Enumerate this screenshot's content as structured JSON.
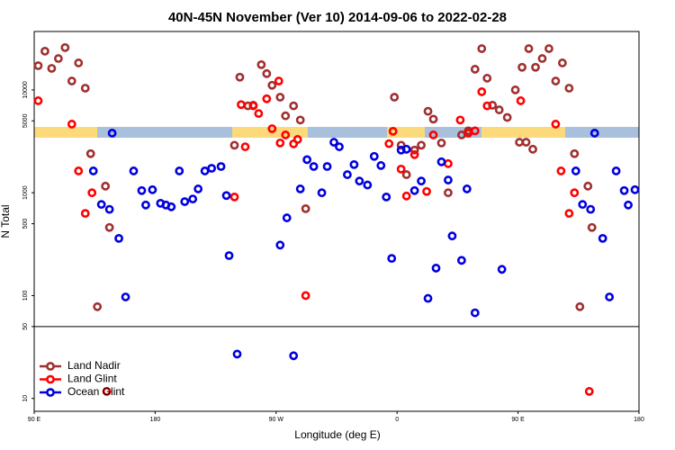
{
  "chart_data": {
    "type": "scatter",
    "title": "40N-45N November (Ver 10)   2014-09-06 to 2022-02-28",
    "xlabel": "Longitude (deg E)",
    "ylabel": "N Total",
    "xlim": [
      90,
      540
    ],
    "ylim": [
      7.5,
      37000
    ],
    "ylog": true,
    "hline": 50,
    "legend": "lower left",
    "xticks": [
      {
        "value": 90,
        "label": "90 E"
      },
      180,
      {
        "value": 270,
        "label": "90 W"
      },
      {
        "value": 360,
        "label": "0"
      },
      {
        "value": 450,
        "label": "90 E"
      },
      180
    ],
    "yticks": [
      10,
      50,
      100,
      500,
      1000,
      5000,
      10000
    ],
    "series": [
      {
        "name": "Land Nadir",
        "color": "#a0302f",
        "x": [
          93,
          98,
          103,
          108,
          113,
          118,
          123,
          128,
          132,
          143,
          137,
          146,
          239,
          243,
          249,
          253,
          259,
          263,
          267,
          273,
          277,
          283,
          288,
          292,
          358,
          363,
          367,
          373,
          378,
          383,
          387,
          393,
          398,
          408,
          413,
          418,
          423,
          427,
          431,
          436,
          442,
          451,
          456,
          461,
          448,
          453,
          458,
          463,
          468,
          473,
          478,
          483,
          488,
          492,
          502,
          496,
          505
        ],
        "values": [
          17200,
          23800,
          16200,
          20200,
          25800,
          12200,
          18300,
          10400,
          2400,
          1160,
          78,
          460,
          2900,
          13300,
          7000,
          7100,
          17600,
          14400,
          11100,
          8500,
          5600,
          7000,
          5100,
          700,
          8500,
          2900,
          1500,
          2600,
          2900,
          6200,
          5200,
          3050,
          1000,
          3650,
          4000,
          15900,
          25200,
          13000,
          7100,
          6400,
          5400,
          3100,
          3100,
          2650,
          10000,
          16600,
          25200,
          16600,
          20200,
          25200,
          12200,
          18300,
          10400,
          2400,
          1160,
          78,
          460
        ]
      },
      {
        "name": "Land Glint",
        "color": "#ff0000",
        "x": [
          93,
          118,
          123,
          128,
          133,
          239,
          247,
          244,
          253,
          257,
          263,
          267,
          272,
          273,
          277,
          283,
          286,
          292,
          357,
          354,
          363,
          367,
          373,
          382,
          387,
          398,
          407,
          413,
          418,
          423,
          427,
          452,
          478,
          482,
          488,
          492,
          503,
          144
        ],
        "values": [
          7850,
          4650,
          1630,
          630,
          1000,
          910,
          2800,
          7200,
          7000,
          5900,
          8200,
          4200,
          12200,
          3050,
          3650,
          2990,
          3300,
          100,
          3960,
          3000,
          1700,
          930,
          2350,
          1030,
          3650,
          1920,
          5100,
          3800,
          4000,
          9600,
          7000,
          7850,
          4650,
          1630,
          630,
          1000,
          11.7,
          11.7
        ]
      },
      {
        "name": "Ocean Glint",
        "color": "#0000e0",
        "x": [
          148,
          134,
          140,
          146,
          153,
          158,
          164,
          170,
          173,
          178,
          184,
          188,
          192,
          198,
          202,
          208,
          212,
          217,
          222,
          229,
          233,
          235,
          241,
          273,
          278,
          283,
          288,
          293,
          298,
          304,
          308,
          313,
          317,
          323,
          328,
          332,
          338,
          343,
          348,
          352,
          356,
          363,
          367,
          373,
          378,
          383,
          389,
          393,
          398,
          401,
          408,
          412,
          418,
          438,
          493,
          498,
          504,
          507,
          513,
          518,
          523,
          529,
          532,
          537
        ],
        "values": [
          3800,
          1630,
          770,
          690,
          360,
          97,
          1630,
          1050,
          760,
          1070,
          790,
          760,
          730,
          1630,
          820,
          870,
          1090,
          1630,
          1730,
          1800,
          940,
          245,
          27,
          310,
          570,
          26,
          1090,
          2100,
          1800,
          1000,
          1800,
          3100,
          2800,
          1500,
          1880,
          1300,
          1190,
          2260,
          1840,
          910,
          230,
          2600,
          2650,
          1050,
          1300,
          94,
          185,
          2000,
          1330,
          380,
          220,
          1090,
          68,
          180,
          1630,
          770,
          690,
          3800,
          360,
          97,
          1630,
          1050,
          760,
          1070
        ]
      }
    ]
  }
}
